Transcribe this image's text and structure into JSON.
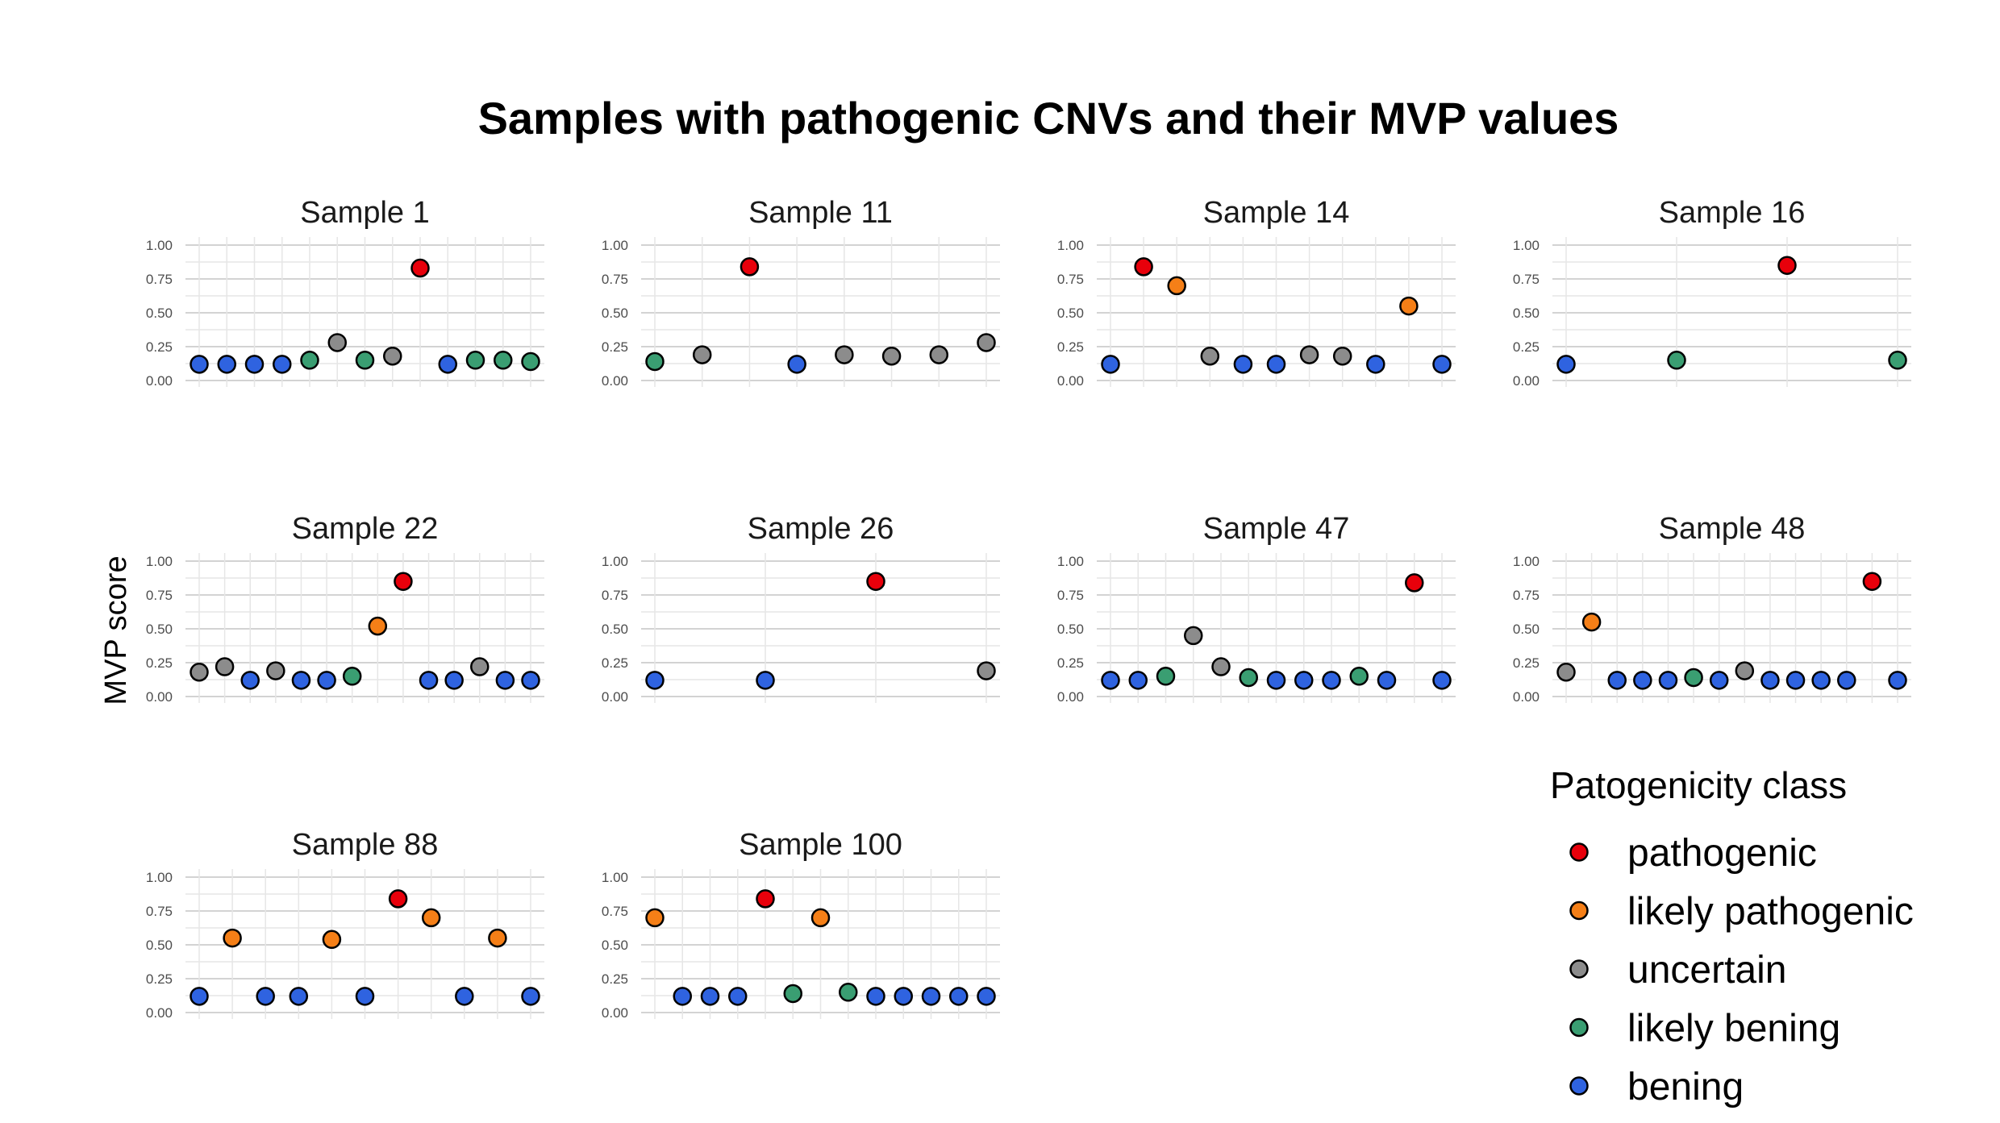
{
  "chart_data": {
    "type": "scatter",
    "title": "Samples with pathogenic CNVs and their MVP values",
    "ylabel": "MVP score",
    "ylim": [
      0,
      1
    ],
    "y_ticks": [
      "0.00",
      "0.25",
      "0.50",
      "0.75",
      "1.00"
    ],
    "legend": {
      "title": "Patogenicity class",
      "position": "bottom-right",
      "items": [
        {
          "key": "pathogenic",
          "label": "pathogenic",
          "color": "#e8000b"
        },
        {
          "key": "likely_pathogenic",
          "label": "likely pathogenic",
          "color": "#f57f17"
        },
        {
          "key": "uncertain",
          "label": "uncertain",
          "color": "#8c8c8c"
        },
        {
          "key": "likely_bening",
          "label": "likely bening",
          "color": "#3a9e72"
        },
        {
          "key": "bening",
          "label": "bening",
          "color": "#2f63e0"
        }
      ]
    },
    "panels": [
      {
        "name": "Sample 1",
        "points": [
          {
            "x": 1,
            "y": 0.12,
            "class": "bening"
          },
          {
            "x": 2,
            "y": 0.12,
            "class": "bening"
          },
          {
            "x": 3,
            "y": 0.12,
            "class": "bening"
          },
          {
            "x": 4,
            "y": 0.12,
            "class": "bening"
          },
          {
            "x": 5,
            "y": 0.15,
            "class": "likely_bening"
          },
          {
            "x": 6,
            "y": 0.28,
            "class": "uncertain"
          },
          {
            "x": 7,
            "y": 0.15,
            "class": "likely_bening"
          },
          {
            "x": 8,
            "y": 0.18,
            "class": "uncertain"
          },
          {
            "x": 9,
            "y": 0.83,
            "class": "pathogenic"
          },
          {
            "x": 10,
            "y": 0.12,
            "class": "bening"
          },
          {
            "x": 11,
            "y": 0.15,
            "class": "likely_bening"
          },
          {
            "x": 12,
            "y": 0.15,
            "class": "likely_bening"
          },
          {
            "x": 13,
            "y": 0.14,
            "class": "likely_bening"
          }
        ]
      },
      {
        "name": "Sample 11",
        "points": [
          {
            "x": 1,
            "y": 0.14,
            "class": "likely_bening"
          },
          {
            "x": 2,
            "y": 0.19,
            "class": "uncertain"
          },
          {
            "x": 3,
            "y": 0.84,
            "class": "pathogenic"
          },
          {
            "x": 4,
            "y": 0.12,
            "class": "bening"
          },
          {
            "x": 5,
            "y": 0.19,
            "class": "uncertain"
          },
          {
            "x": 6,
            "y": 0.18,
            "class": "uncertain"
          },
          {
            "x": 7,
            "y": 0.19,
            "class": "uncertain"
          },
          {
            "x": 8,
            "y": 0.28,
            "class": "uncertain"
          }
        ]
      },
      {
        "name": "Sample 14",
        "points": [
          {
            "x": 1,
            "y": 0.12,
            "class": "bening"
          },
          {
            "x": 2,
            "y": 0.84,
            "class": "pathogenic"
          },
          {
            "x": 3,
            "y": 0.7,
            "class": "likely_pathogenic"
          },
          {
            "x": 4,
            "y": 0.18,
            "class": "uncertain"
          },
          {
            "x": 5,
            "y": 0.12,
            "class": "bening"
          },
          {
            "x": 6,
            "y": 0.12,
            "class": "bening"
          },
          {
            "x": 7,
            "y": 0.19,
            "class": "uncertain"
          },
          {
            "x": 8,
            "y": 0.18,
            "class": "uncertain"
          },
          {
            "x": 9,
            "y": 0.12,
            "class": "bening"
          },
          {
            "x": 10,
            "y": 0.55,
            "class": "likely_pathogenic"
          },
          {
            "x": 11,
            "y": 0.12,
            "class": "bening"
          }
        ]
      },
      {
        "name": "Sample 16",
        "points": [
          {
            "x": 1,
            "y": 0.12,
            "class": "bening"
          },
          {
            "x": 2,
            "y": 0.15,
            "class": "likely_bening"
          },
          {
            "x": 3,
            "y": 0.85,
            "class": "pathogenic"
          },
          {
            "x": 4,
            "y": 0.15,
            "class": "likely_bening"
          }
        ]
      },
      {
        "name": "Sample 22",
        "points": [
          {
            "x": 1,
            "y": 0.18,
            "class": "uncertain"
          },
          {
            "x": 2,
            "y": 0.22,
            "class": "uncertain"
          },
          {
            "x": 3,
            "y": 0.12,
            "class": "bening"
          },
          {
            "x": 4,
            "y": 0.19,
            "class": "uncertain"
          },
          {
            "x": 5,
            "y": 0.12,
            "class": "bening"
          },
          {
            "x": 6,
            "y": 0.12,
            "class": "bening"
          },
          {
            "x": 7,
            "y": 0.15,
            "class": "likely_bening"
          },
          {
            "x": 8,
            "y": 0.52,
            "class": "likely_pathogenic"
          },
          {
            "x": 9,
            "y": 0.85,
            "class": "pathogenic"
          },
          {
            "x": 10,
            "y": 0.12,
            "class": "bening"
          },
          {
            "x": 11,
            "y": 0.12,
            "class": "bening"
          },
          {
            "x": 12,
            "y": 0.22,
            "class": "uncertain"
          },
          {
            "x": 13,
            "y": 0.12,
            "class": "bening"
          },
          {
            "x": 14,
            "y": 0.12,
            "class": "bening"
          }
        ]
      },
      {
        "name": "Sample 26",
        "points": [
          {
            "x": 1,
            "y": 0.12,
            "class": "bening"
          },
          {
            "x": 2,
            "y": 0.12,
            "class": "bening"
          },
          {
            "x": 3,
            "y": 0.85,
            "class": "pathogenic"
          },
          {
            "x": 4,
            "y": 0.19,
            "class": "uncertain"
          }
        ]
      },
      {
        "name": "Sample 47",
        "points": [
          {
            "x": 1,
            "y": 0.12,
            "class": "bening"
          },
          {
            "x": 2,
            "y": 0.12,
            "class": "bening"
          },
          {
            "x": 3,
            "y": 0.15,
            "class": "likely_bening"
          },
          {
            "x": 4,
            "y": 0.45,
            "class": "uncertain"
          },
          {
            "x": 5,
            "y": 0.22,
            "class": "uncertain"
          },
          {
            "x": 6,
            "y": 0.14,
            "class": "likely_bening"
          },
          {
            "x": 7,
            "y": 0.12,
            "class": "bening"
          },
          {
            "x": 8,
            "y": 0.12,
            "class": "bening"
          },
          {
            "x": 9,
            "y": 0.12,
            "class": "bening"
          },
          {
            "x": 10,
            "y": 0.15,
            "class": "likely_bening"
          },
          {
            "x": 11,
            "y": 0.12,
            "class": "bening"
          },
          {
            "x": 12,
            "y": 0.84,
            "class": "pathogenic"
          },
          {
            "x": 13,
            "y": 0.12,
            "class": "bening"
          }
        ]
      },
      {
        "name": "Sample 48",
        "points": [
          {
            "x": 1,
            "y": 0.18,
            "class": "uncertain"
          },
          {
            "x": 2,
            "y": 0.55,
            "class": "likely_pathogenic"
          },
          {
            "x": 3,
            "y": 0.12,
            "class": "bening"
          },
          {
            "x": 4,
            "y": 0.12,
            "class": "bening"
          },
          {
            "x": 5,
            "y": 0.12,
            "class": "bening"
          },
          {
            "x": 6,
            "y": 0.14,
            "class": "likely_bening"
          },
          {
            "x": 7,
            "y": 0.12,
            "class": "bening"
          },
          {
            "x": 8,
            "y": 0.19,
            "class": "uncertain"
          },
          {
            "x": 9,
            "y": 0.12,
            "class": "bening"
          },
          {
            "x": 10,
            "y": 0.12,
            "class": "bening"
          },
          {
            "x": 11,
            "y": 0.12,
            "class": "bening"
          },
          {
            "x": 12,
            "y": 0.12,
            "class": "bening"
          },
          {
            "x": 13,
            "y": 0.85,
            "class": "pathogenic"
          },
          {
            "x": 14,
            "y": 0.12,
            "class": "bening"
          }
        ]
      },
      {
        "name": "Sample 88",
        "points": [
          {
            "x": 1,
            "y": 0.12,
            "class": "bening"
          },
          {
            "x": 2,
            "y": 0.55,
            "class": "likely_pathogenic"
          },
          {
            "x": 3,
            "y": 0.12,
            "class": "bening"
          },
          {
            "x": 4,
            "y": 0.12,
            "class": "bening"
          },
          {
            "x": 5,
            "y": 0.54,
            "class": "likely_pathogenic"
          },
          {
            "x": 6,
            "y": 0.12,
            "class": "bening"
          },
          {
            "x": 7,
            "y": 0.84,
            "class": "pathogenic"
          },
          {
            "x": 8,
            "y": 0.7,
            "class": "likely_pathogenic"
          },
          {
            "x": 9,
            "y": 0.12,
            "class": "bening"
          },
          {
            "x": 10,
            "y": 0.55,
            "class": "likely_pathogenic"
          },
          {
            "x": 11,
            "y": 0.12,
            "class": "bening"
          }
        ]
      },
      {
        "name": "Sample 100",
        "points": [
          {
            "x": 1,
            "y": 0.7,
            "class": "likely_pathogenic"
          },
          {
            "x": 2,
            "y": 0.12,
            "class": "bening"
          },
          {
            "x": 3,
            "y": 0.12,
            "class": "bening"
          },
          {
            "x": 4,
            "y": 0.12,
            "class": "bening"
          },
          {
            "x": 5,
            "y": 0.84,
            "class": "pathogenic"
          },
          {
            "x": 6,
            "y": 0.14,
            "class": "likely_bening"
          },
          {
            "x": 7,
            "y": 0.7,
            "class": "likely_pathogenic"
          },
          {
            "x": 8,
            "y": 0.15,
            "class": "likely_bening"
          },
          {
            "x": 9,
            "y": 0.12,
            "class": "bening"
          },
          {
            "x": 10,
            "y": 0.12,
            "class": "bening"
          },
          {
            "x": 11,
            "y": 0.12,
            "class": "bening"
          },
          {
            "x": 12,
            "y": 0.12,
            "class": "bening"
          },
          {
            "x": 13,
            "y": 0.12,
            "class": "bening"
          }
        ]
      }
    ]
  }
}
